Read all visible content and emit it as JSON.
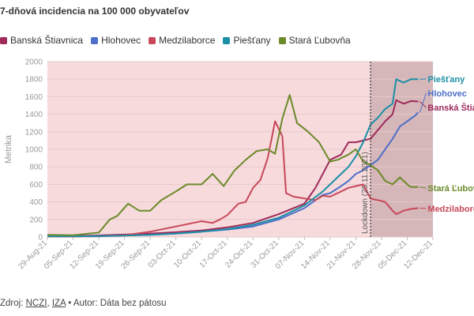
{
  "header": {
    "title": "7-dňová incidencia na 100 000 obyvateľov"
  },
  "source": {
    "prefix": "Zdroj: ",
    "links": [
      "NCZI",
      "IZA"
    ],
    "sep": ", ",
    "author": " • Autor: Dáta bez pátosu"
  },
  "chart_data": {
    "type": "line",
    "title": "7-dňová incidencia na 100 000 obyvateľov",
    "ylabel": "Metrika",
    "xlabel": "",
    "ylim": [
      0,
      2000
    ],
    "yticks": [
      0,
      200,
      400,
      600,
      800,
      1000,
      1200,
      1400,
      1600,
      1800,
      2000
    ],
    "grid": true,
    "legend_position": "top-left",
    "x_start": "2021-08-29",
    "x_end": "2021-12-12",
    "xticks": [
      "29-Aug-21",
      "05-Sep-21",
      "12-Sep-21",
      "19-Sep-21",
      "26-Sep-21",
      "03-Oct-21",
      "10-Oct-21",
      "17-Oct-21",
      "24-Oct-21",
      "31-Oct-21",
      "07-Nov-21",
      "14-Nov-21",
      "21-Nov-21",
      "28-Nov-21",
      "05-Dec-21",
      "12-Dec-21"
    ],
    "annotation": {
      "label": "Lockdown (25.11.2021)",
      "date": "2021-11-25",
      "shaded_after": true
    },
    "background_color": "#f6dadc",
    "shaded_color": "#c9a9ad",
    "series": [
      {
        "name": "Banská Štiavnica",
        "color": "#9e2a5a",
        "end_label": "Banská Štiavnica",
        "points": [
          [
            "2021-08-29",
            18
          ],
          [
            "2021-09-05",
            12
          ],
          [
            "2021-09-12",
            18
          ],
          [
            "2021-09-19",
            28
          ],
          [
            "2021-09-26",
            40
          ],
          [
            "2021-10-03",
            55
          ],
          [
            "2021-10-10",
            75
          ],
          [
            "2021-10-17",
            110
          ],
          [
            "2021-10-24",
            160
          ],
          [
            "2021-10-31",
            260
          ],
          [
            "2021-11-07",
            380
          ],
          [
            "2021-11-10",
            560
          ],
          [
            "2021-11-12",
            720
          ],
          [
            "2021-11-14",
            880
          ],
          [
            "2021-11-17",
            940
          ],
          [
            "2021-11-19",
            1080
          ],
          [
            "2021-11-21",
            1080
          ],
          [
            "2021-11-23",
            1100
          ],
          [
            "2021-11-25",
            1120
          ],
          [
            "2021-11-27",
            1220
          ],
          [
            "2021-11-29",
            1320
          ],
          [
            "2021-12-01",
            1400
          ],
          [
            "2021-12-02",
            1560
          ],
          [
            "2021-12-04",
            1520
          ],
          [
            "2021-12-06",
            1550
          ],
          [
            "2021-12-08",
            1545
          ]
        ]
      },
      {
        "name": "Hlohovec",
        "color": "#4e6fc9",
        "end_label": "Hlohovec",
        "points": [
          [
            "2021-08-29",
            8
          ],
          [
            "2021-09-05",
            8
          ],
          [
            "2021-09-12",
            12
          ],
          [
            "2021-09-19",
            18
          ],
          [
            "2021-09-26",
            25
          ],
          [
            "2021-10-03",
            40
          ],
          [
            "2021-10-10",
            60
          ],
          [
            "2021-10-17",
            85
          ],
          [
            "2021-10-24",
            120
          ],
          [
            "2021-10-31",
            200
          ],
          [
            "2021-11-07",
            330
          ],
          [
            "2021-11-12",
            480
          ],
          [
            "2021-11-14",
            500
          ],
          [
            "2021-11-17",
            580
          ],
          [
            "2021-11-19",
            640
          ],
          [
            "2021-11-21",
            720
          ],
          [
            "2021-11-23",
            760
          ],
          [
            "2021-11-25",
            820
          ],
          [
            "2021-11-27",
            880
          ],
          [
            "2021-11-29",
            1000
          ],
          [
            "2021-12-01",
            1120
          ],
          [
            "2021-12-03",
            1260
          ],
          [
            "2021-12-05",
            1320
          ],
          [
            "2021-12-07",
            1380
          ],
          [
            "2021-12-08",
            1420
          ]
        ]
      },
      {
        "name": "Medzilaborce",
        "color": "#c8485a",
        "end_label": "Medzilaborce",
        "points": [
          [
            "2021-08-29",
            5
          ],
          [
            "2021-09-05",
            5
          ],
          [
            "2021-09-12",
            8
          ],
          [
            "2021-09-19",
            20
          ],
          [
            "2021-09-26",
            60
          ],
          [
            "2021-10-03",
            120
          ],
          [
            "2021-10-10",
            180
          ],
          [
            "2021-10-13",
            160
          ],
          [
            "2021-10-15",
            200
          ],
          [
            "2021-10-17",
            250
          ],
          [
            "2021-10-20",
            380
          ],
          [
            "2021-10-22",
            400
          ],
          [
            "2021-10-24",
            560
          ],
          [
            "2021-10-26",
            650
          ],
          [
            "2021-10-28",
            900
          ],
          [
            "2021-10-30",
            1320
          ],
          [
            "2021-11-01",
            1150
          ],
          [
            "2021-11-02",
            500
          ],
          [
            "2021-11-04",
            460
          ],
          [
            "2021-11-07",
            440
          ],
          [
            "2021-11-10",
            420
          ],
          [
            "2021-11-12",
            470
          ],
          [
            "2021-11-14",
            460
          ],
          [
            "2021-11-17",
            520
          ],
          [
            "2021-11-19",
            560
          ],
          [
            "2021-11-21",
            580
          ],
          [
            "2021-11-23",
            600
          ],
          [
            "2021-11-25",
            440
          ],
          [
            "2021-11-27",
            420
          ],
          [
            "2021-11-29",
            400
          ],
          [
            "2021-12-01",
            300
          ],
          [
            "2021-12-02",
            260
          ],
          [
            "2021-12-04",
            300
          ],
          [
            "2021-12-06",
            320
          ],
          [
            "2021-12-08",
            330
          ]
        ]
      },
      {
        "name": "Piešťany",
        "color": "#1b8fa6",
        "end_label": "Piešťany",
        "points": [
          [
            "2021-08-29",
            8
          ],
          [
            "2021-09-05",
            8
          ],
          [
            "2021-09-12",
            10
          ],
          [
            "2021-09-19",
            15
          ],
          [
            "2021-09-26",
            25
          ],
          [
            "2021-10-03",
            40
          ],
          [
            "2021-10-10",
            60
          ],
          [
            "2021-10-17",
            90
          ],
          [
            "2021-10-24",
            140
          ],
          [
            "2021-10-31",
            220
          ],
          [
            "2021-11-07",
            360
          ],
          [
            "2021-11-12",
            520
          ],
          [
            "2021-11-14",
            600
          ],
          [
            "2021-11-17",
            720
          ],
          [
            "2021-11-19",
            800
          ],
          [
            "2021-11-21",
            920
          ],
          [
            "2021-11-23",
            1080
          ],
          [
            "2021-11-25",
            1280
          ],
          [
            "2021-11-27",
            1360
          ],
          [
            "2021-11-29",
            1460
          ],
          [
            "2021-12-01",
            1520
          ],
          [
            "2021-12-02",
            1800
          ],
          [
            "2021-12-04",
            1760
          ],
          [
            "2021-12-06",
            1800
          ],
          [
            "2021-12-08",
            1800
          ]
        ]
      },
      {
        "name": "Stará Ľubovňa",
        "color": "#6b8a2a",
        "end_label": "Stará Ľubovňa",
        "points": [
          [
            "2021-08-29",
            25
          ],
          [
            "2021-09-05",
            20
          ],
          [
            "2021-09-12",
            50
          ],
          [
            "2021-09-15",
            200
          ],
          [
            "2021-09-17",
            240
          ],
          [
            "2021-09-20",
            380
          ],
          [
            "2021-09-23",
            300
          ],
          [
            "2021-09-26",
            300
          ],
          [
            "2021-09-29",
            420
          ],
          [
            "2021-10-03",
            520
          ],
          [
            "2021-10-06",
            600
          ],
          [
            "2021-10-10",
            600
          ],
          [
            "2021-10-13",
            720
          ],
          [
            "2021-10-16",
            580
          ],
          [
            "2021-10-19",
            760
          ],
          [
            "2021-10-22",
            880
          ],
          [
            "2021-10-25",
            980
          ],
          [
            "2021-10-28",
            1000
          ],
          [
            "2021-10-30",
            950
          ],
          [
            "2021-11-01",
            1350
          ],
          [
            "2021-11-03",
            1620
          ],
          [
            "2021-11-05",
            1300
          ],
          [
            "2021-11-08",
            1200
          ],
          [
            "2021-11-11",
            1080
          ],
          [
            "2021-11-14",
            860
          ],
          [
            "2021-11-16",
            880
          ],
          [
            "2021-11-19",
            940
          ],
          [
            "2021-11-21",
            1000
          ],
          [
            "2021-11-23",
            860
          ],
          [
            "2021-11-25",
            820
          ],
          [
            "2021-11-27",
            760
          ],
          [
            "2021-11-29",
            640
          ],
          [
            "2021-12-01",
            600
          ],
          [
            "2021-12-03",
            680
          ],
          [
            "2021-12-05",
            600
          ],
          [
            "2021-12-06",
            570
          ],
          [
            "2021-12-08",
            570
          ]
        ]
      }
    ]
  },
  "colors": {
    "plot_bg": "#f6dadc",
    "shaded": "#c9a9ad",
    "gridline": "#e8c8cb"
  }
}
